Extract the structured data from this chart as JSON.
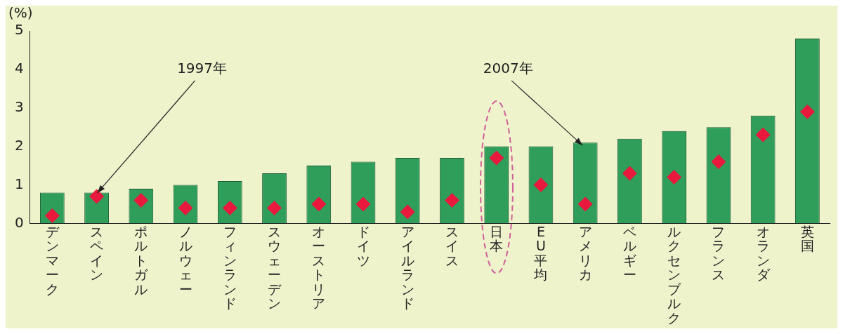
{
  "chart_data": {
    "type": "bar",
    "ylabel": "(%)",
    "categories": [
      "デンマーク",
      "スペイン",
      "ポルトガル",
      "ノルウェー",
      "フィンランド",
      "スウェーデン",
      "オーストリア",
      "ドイツ",
      "アイルランド",
      "スイス",
      "日本",
      "EU平均",
      "アメリカ",
      "ベルギー",
      "ルクセンブルク",
      "フランス",
      "オランダ",
      "英国"
    ],
    "series": [
      {
        "color": "#2e9e5a",
        "values": [
          0.8,
          0.8,
          0.9,
          1.0,
          1.1,
          1.3,
          1.5,
          1.6,
          1.7,
          1.7,
          2.0,
          2.0,
          2.1,
          2.2,
          2.4,
          2.5,
          2.8,
          4.8
        ]
      },
      {
        "type": "scatter",
        "color": "#e8193c",
        "marker": "diamond",
        "values": [
          0.2,
          0.7,
          0.6,
          0.4,
          0.4,
          0.4,
          0.5,
          0.5,
          0.3,
          0.6,
          1.7,
          1.0,
          0.5,
          1.3,
          1.2,
          1.6,
          2.3,
          2.9
        ]
      }
    ],
    "ylim": [
      0,
      5
    ],
    "yticks": [
      0,
      1,
      2,
      3,
      4,
      5
    ],
    "grid": false,
    "legend": false,
    "annotations": [
      {
        "text": "1997年",
        "x": "スペイン",
        "y": 0.7
      },
      {
        "text": "2007年",
        "x": "アメリカ",
        "y": 2.1
      }
    ]
  }
}
